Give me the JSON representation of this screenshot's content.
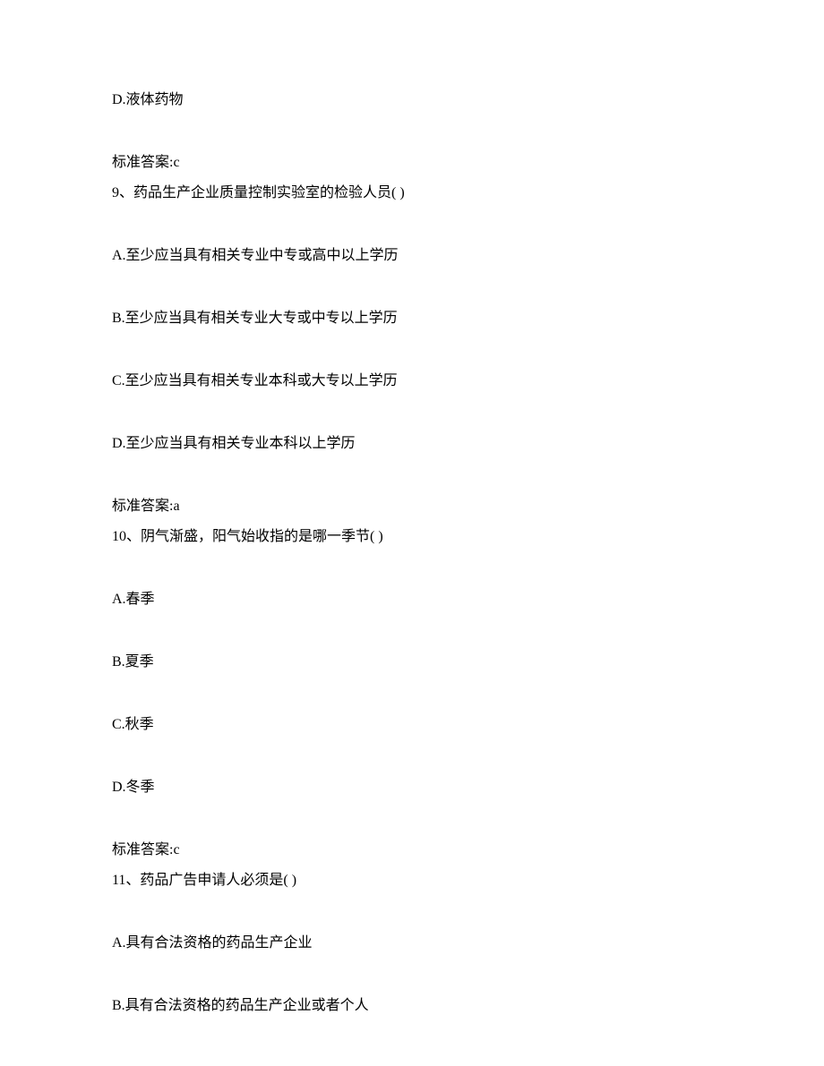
{
  "font": {
    "family": "SimSun",
    "size_pt": 12,
    "color": "#000000"
  },
  "background_color": "#ffffff",
  "content": {
    "q8_option_d": "D.液体药物",
    "q8_answer": "标准答案:c",
    "q9_stem": "9、药品生产企业质量控制实验室的检验人员( )",
    "q9_option_a": "A.至少应当具有相关专业中专或高中以上学历",
    "q9_option_b": "B.至少应当具有相关专业大专或中专以上学历",
    "q9_option_c": "C.至少应当具有相关专业本科或大专以上学历",
    "q9_option_d": "D.至少应当具有相关专业本科以上学历",
    "q9_answer": "标准答案:a",
    "q10_stem": "10、阴气渐盛，阳气始收指的是哪一季节( )",
    "q10_option_a": "A.春季",
    "q10_option_b": "B.夏季",
    "q10_option_c": "C.秋季",
    "q10_option_d": "D.冬季",
    "q10_answer": "标准答案:c",
    "q11_stem": "11、药品广告申请人必须是( )",
    "q11_option_a": "A.具有合法资格的药品生产企业",
    "q11_option_b": "B.具有合法资格的药品生产企业或者个人"
  }
}
